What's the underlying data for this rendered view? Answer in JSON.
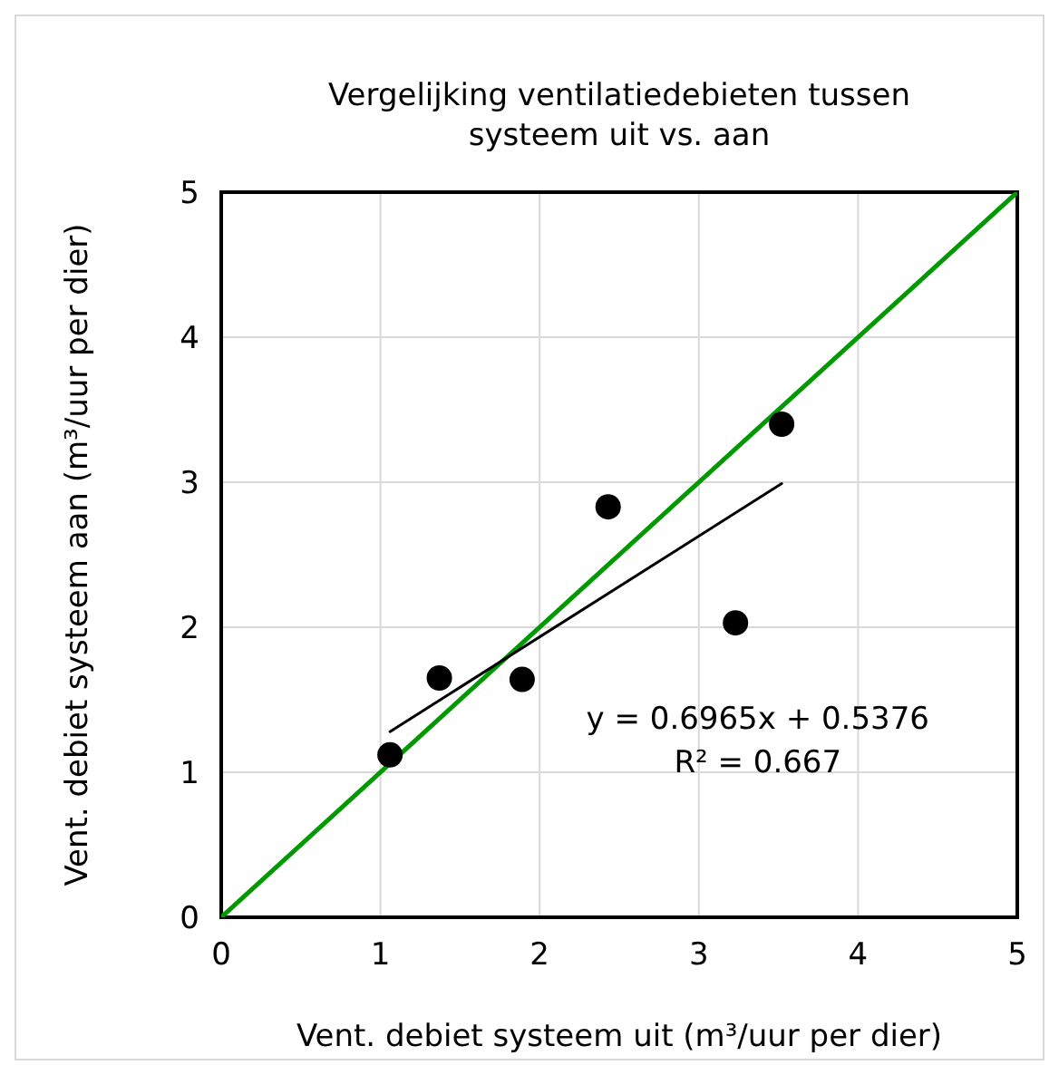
{
  "chart_data": {
    "type": "scatter",
    "title": "Vergelijking ventilatiedebieten tussen systeem uit vs. aan",
    "xlabel": "Vent. debiet systeem uit (m³/uur per dier)",
    "ylabel": "Vent. debiet systeem aan (m³/uur per dier)",
    "annotations": [
      "y = 0.6965x + 0.5376",
      "R² = 0.667"
    ],
    "xlim": [
      0,
      5
    ],
    "ylim": [
      0,
      5
    ],
    "xticks": [
      0,
      1,
      2,
      3,
      4,
      5
    ],
    "yticks": [
      0,
      1,
      2,
      3,
      4,
      5
    ],
    "grid": true,
    "series": [
      {
        "type": "line",
        "color": "#009900",
        "x": [
          0,
          5
        ],
        "values": [
          0,
          5
        ],
        "marker": "none",
        "line_style": "solid"
      },
      {
        "type": "line",
        "color": "#000000",
        "x": [
          1.06,
          3.52
        ],
        "values": [
          1.28,
          2.99
        ],
        "marker": "none",
        "line_style": "solid"
      },
      {
        "color": "#000000",
        "marker": "circle",
        "x": [
          1.06,
          1.37,
          1.89,
          2.43,
          3.23,
          3.52
        ],
        "values": [
          1.12,
          1.65,
          1.64,
          2.83,
          2.03,
          3.4
        ]
      }
    ]
  }
}
